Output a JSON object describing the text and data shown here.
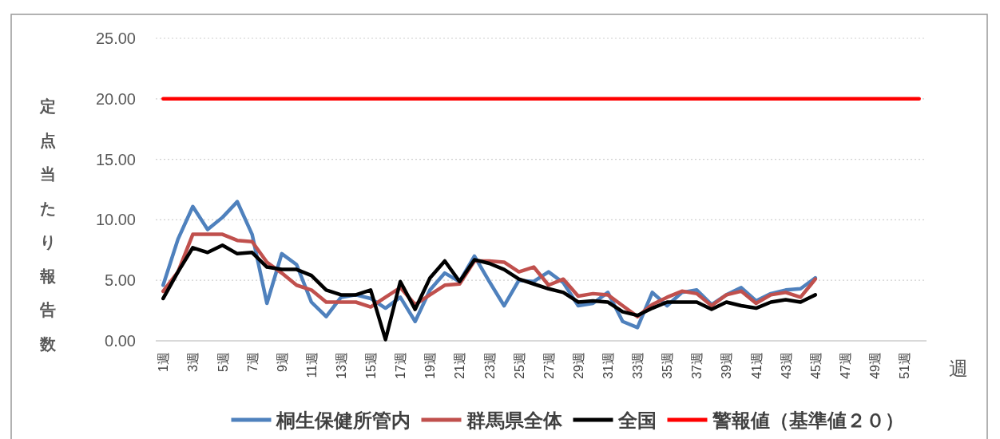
{
  "chart_data": {
    "type": "line",
    "ylabel": "定点当たり報告数",
    "xlabel": "週",
    "categories": [
      "1週",
      null,
      "3週",
      null,
      "5週",
      null,
      "7週",
      null,
      "9週",
      null,
      "11週",
      null,
      "13週",
      null,
      "15週",
      null,
      "17週",
      null,
      "19週",
      null,
      "21週",
      null,
      "23週",
      null,
      "25週",
      null,
      "27週",
      null,
      "29週",
      null,
      "31週",
      null,
      "33週",
      null,
      "35週",
      null,
      "37週",
      null,
      "39週",
      null,
      "41週",
      null,
      "43週",
      null,
      "45週",
      null,
      "47週",
      null,
      "49週",
      null,
      "51週",
      null
    ],
    "series": [
      {
        "name": "桐生保健所管内",
        "color": "#4f81bd",
        "values": [
          4.6,
          8.4,
          11.1,
          9.2,
          10.2,
          11.5,
          8.8,
          3.1,
          7.2,
          6.3,
          3.2,
          2.0,
          3.6,
          3.8,
          3.5,
          2.7,
          3.6,
          1.6,
          4.2,
          5.6,
          4.9,
          7.0,
          4.9,
          2.9,
          5.0,
          4.9,
          5.7,
          4.8,
          2.9,
          3.1,
          4.0,
          1.6,
          1.1,
          4.0,
          2.9,
          4.0,
          4.2,
          3.0,
          3.8,
          4.4,
          3.3,
          3.9,
          4.2,
          4.3,
          5.2,
          null,
          null,
          null,
          null,
          null,
          null,
          null
        ]
      },
      {
        "name": "群馬県全体",
        "color": "#c0504d",
        "values": [
          4.1,
          5.7,
          8.8,
          8.8,
          8.8,
          8.3,
          8.2,
          6.5,
          5.6,
          4.6,
          4.2,
          3.2,
          3.2,
          3.2,
          2.8,
          3.6,
          4.4,
          3.0,
          3.8,
          4.6,
          4.7,
          6.6,
          6.6,
          6.5,
          5.7,
          6.1,
          4.6,
          5.1,
          3.7,
          3.9,
          3.8,
          2.9,
          2.0,
          3.0,
          3.6,
          4.1,
          3.9,
          2.9,
          3.8,
          4.1,
          3.1,
          3.8,
          4.0,
          3.6,
          5.1,
          null,
          null,
          null,
          null,
          null,
          null,
          null
        ]
      },
      {
        "name": "全国",
        "color": "#000000",
        "values": [
          3.5,
          5.7,
          7.7,
          7.3,
          7.9,
          7.2,
          7.3,
          6.1,
          5.9,
          5.9,
          5.4,
          4.2,
          3.8,
          3.8,
          4.2,
          0.1,
          4.9,
          2.6,
          5.2,
          6.6,
          4.9,
          6.7,
          6.4,
          5.9,
          5.1,
          4.7,
          4.3,
          4.0,
          3.2,
          3.3,
          3.2,
          2.4,
          2.1,
          2.7,
          3.2,
          3.2,
          3.2,
          2.6,
          3.2,
          2.9,
          2.7,
          3.2,
          3.4,
          3.2,
          3.8,
          null,
          null,
          null,
          null,
          null,
          null,
          null
        ]
      },
      {
        "name": "警報値（基準値２０）",
        "color": "#ff0000",
        "values": [
          20,
          20,
          20,
          20,
          20,
          20,
          20,
          20,
          20,
          20,
          20,
          20,
          20,
          20,
          20,
          20,
          20,
          20,
          20,
          20,
          20,
          20,
          20,
          20,
          20,
          20,
          20,
          20,
          20,
          20,
          20,
          20,
          20,
          20,
          20,
          20,
          20,
          20,
          20,
          20,
          20,
          20,
          20,
          20,
          20,
          20,
          20,
          20,
          20,
          20,
          20,
          20
        ]
      }
    ],
    "ylim": [
      0,
      25
    ],
    "yticks": [
      {
        "value": 0,
        "label": "0.00"
      },
      {
        "value": 5,
        "label": "5.00"
      },
      {
        "value": 10,
        "label": "10.00"
      },
      {
        "value": 15,
        "label": "15.00"
      },
      {
        "value": 20,
        "label": "20.00"
      },
      {
        "value": 25,
        "label": "25.00"
      }
    ],
    "grid": "y",
    "legend": "bottom",
    "line_style": "solid",
    "marker": "none"
  }
}
